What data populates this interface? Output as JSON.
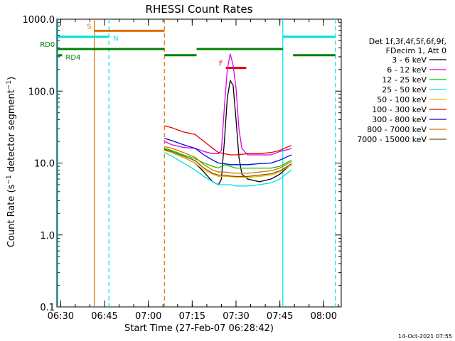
{
  "chart_data": {
    "type": "line",
    "title": "RHESSI Count Rates",
    "xlabel": "Start Time (27-Feb-07 06:28:42)",
    "ylabel_main": "Count Rate (s",
    "ylabel_sup1": "−1",
    "ylabel_mid": " detector segment",
    "ylabel_sup2": "−1",
    "ylabel_end": ")",
    "y_scale": "log",
    "ylim": [
      0.1,
      1000
    ],
    "xlim": [
      "06:28:42",
      "08:06:00"
    ],
    "x_ticks": [
      {
        "t": "06:30",
        "label": "06:30"
      },
      {
        "t": "06:45",
        "label": "06:45"
      },
      {
        "t": "07:00",
        "label": "07:00"
      },
      {
        "t": "07:15",
        "label": "07:15"
      },
      {
        "t": "07:30",
        "label": "07:30"
      },
      {
        "t": "07:45",
        "label": "07:45"
      },
      {
        "t": "08:00",
        "label": "08:00"
      }
    ],
    "y_ticks": [
      {
        "v": 0.1,
        "label": "0.1"
      },
      {
        "v": 1,
        "label": "1.0"
      },
      {
        "v": 10,
        "label": "10.0"
      },
      {
        "v": 100,
        "label": "100.0"
      },
      {
        "v": 1000,
        "label": "1000.0"
      }
    ],
    "legend_title": [
      "Det 1f,3f,4f,5f,6f,9f,",
      "FDecim 1, Att 0"
    ],
    "legend_placement": "right",
    "series": [
      {
        "name": "3 - 6 keV",
        "color": "#000000",
        "points": [
          [
            "07:05:30",
            15.5
          ],
          [
            "07:08",
            14
          ],
          [
            "07:12",
            12
          ],
          [
            "07:16",
            10
          ],
          [
            "07:19",
            7.5
          ],
          [
            "07:22",
            5.5
          ],
          [
            "07:24",
            5
          ],
          [
            "07:25",
            6
          ],
          [
            "07:26",
            20
          ],
          [
            "07:27",
            80
          ],
          [
            "07:28",
            140
          ],
          [
            "07:29",
            120
          ],
          [
            "07:30",
            40
          ],
          [
            "07:31",
            12
          ],
          [
            "07:32",
            7
          ],
          [
            "07:34",
            6
          ],
          [
            "07:38",
            5.5
          ],
          [
            "07:42",
            6
          ],
          [
            "07:45",
            7
          ],
          [
            "07:48",
            9
          ],
          [
            "07:49",
            9.5
          ]
        ]
      },
      {
        "name": "6 - 12 keV",
        "color": "#e000e0",
        "points": [
          [
            "07:05:30",
            20
          ],
          [
            "07:08",
            18
          ],
          [
            "07:12",
            16.5
          ],
          [
            "07:16",
            16
          ],
          [
            "07:19",
            14.5
          ],
          [
            "07:22",
            13.5
          ],
          [
            "07:24",
            13.5
          ],
          [
            "07:25",
            15
          ],
          [
            "07:26",
            60
          ],
          [
            "07:27",
            200
          ],
          [
            "07:28",
            330
          ],
          [
            "07:29",
            230
          ],
          [
            "07:30",
            110
          ],
          [
            "07:31",
            30
          ],
          [
            "07:32",
            16
          ],
          [
            "07:34",
            13
          ],
          [
            "07:38",
            13
          ],
          [
            "07:42",
            13
          ],
          [
            "07:45",
            14.5
          ],
          [
            "07:48",
            15.5
          ],
          [
            "07:49",
            16
          ]
        ]
      },
      {
        "name": "12 - 25 keV",
        "color": "#00cc00",
        "points": [
          [
            "07:05:30",
            16
          ],
          [
            "07:08",
            15
          ],
          [
            "07:12",
            13
          ],
          [
            "07:16",
            11.5
          ],
          [
            "07:19",
            10
          ],
          [
            "07:22",
            9
          ],
          [
            "07:24",
            8.5
          ],
          [
            "07:26",
            9.5
          ],
          [
            "07:28",
            9
          ],
          [
            "07:30",
            8.5
          ],
          [
            "07:34",
            8.5
          ],
          [
            "07:38",
            8.5
          ],
          [
            "07:42",
            8.5
          ],
          [
            "07:45",
            9
          ],
          [
            "07:48",
            10.5
          ],
          [
            "07:49",
            11
          ]
        ]
      },
      {
        "name": "25 - 50 keV",
        "color": "#00e0e0",
        "points": [
          [
            "07:05:30",
            14
          ],
          [
            "07:08",
            12.5
          ],
          [
            "07:12",
            10
          ],
          [
            "07:16",
            8
          ],
          [
            "07:19",
            6.5
          ],
          [
            "07:22",
            5.5
          ],
          [
            "07:24",
            5
          ],
          [
            "07:26",
            5
          ],
          [
            "07:28",
            5
          ],
          [
            "07:30",
            4.8
          ],
          [
            "07:34",
            4.8
          ],
          [
            "07:38",
            5
          ],
          [
            "07:42",
            5.3
          ],
          [
            "07:45",
            6
          ],
          [
            "07:48",
            7.5
          ],
          [
            "07:49",
            8
          ]
        ]
      },
      {
        "name": "50 - 100 keV",
        "color": "#e0c000",
        "points": [
          [
            "07:05:30",
            15
          ],
          [
            "07:08",
            14
          ],
          [
            "07:12",
            12
          ],
          [
            "07:16",
            10
          ],
          [
            "07:19",
            8
          ],
          [
            "07:22",
            7
          ],
          [
            "07:24",
            6.5
          ],
          [
            "07:26",
            6.5
          ],
          [
            "07:28",
            6.5
          ],
          [
            "07:30",
            6.3
          ],
          [
            "07:34",
            6.3
          ],
          [
            "07:38",
            6.5
          ],
          [
            "07:42",
            6.8
          ],
          [
            "07:45",
            7.5
          ],
          [
            "07:48",
            9
          ],
          [
            "07:49",
            9.5
          ]
        ]
      },
      {
        "name": "100 - 300 keV",
        "color": "#e00000",
        "points": [
          [
            "07:05:30",
            33
          ],
          [
            "07:08",
            31
          ],
          [
            "07:12",
            27
          ],
          [
            "07:16",
            25
          ],
          [
            "07:19",
            20
          ],
          [
            "07:22",
            16
          ],
          [
            "07:24",
            14
          ],
          [
            "07:26",
            13.5
          ],
          [
            "07:28",
            13
          ],
          [
            "07:30",
            13
          ],
          [
            "07:34",
            13.5
          ],
          [
            "07:38",
            13.5
          ],
          [
            "07:42",
            14
          ],
          [
            "07:45",
            15
          ],
          [
            "07:48",
            17
          ],
          [
            "07:49",
            17.5
          ]
        ]
      },
      {
        "name": "300 - 800 keV",
        "color": "#0000e0",
        "points": [
          [
            "07:05:30",
            22
          ],
          [
            "07:08",
            20.5
          ],
          [
            "07:12",
            18
          ],
          [
            "07:16",
            16
          ],
          [
            "07:19",
            13
          ],
          [
            "07:22",
            11
          ],
          [
            "07:24",
            10
          ],
          [
            "07:26",
            9.8
          ],
          [
            "07:28",
            9.5
          ],
          [
            "07:30",
            9.5
          ],
          [
            "07:34",
            9.5
          ],
          [
            "07:38",
            9.8
          ],
          [
            "07:42",
            10
          ],
          [
            "07:45",
            11
          ],
          [
            "07:48",
            12.5
          ],
          [
            "07:49",
            13
          ]
        ]
      },
      {
        "name": "800 - 7000 keV",
        "color": "#e07000",
        "points": [
          [
            "07:05:30",
            17
          ],
          [
            "07:08",
            16
          ],
          [
            "07:12",
            14
          ],
          [
            "07:16",
            12
          ],
          [
            "07:19",
            9.5
          ],
          [
            "07:22",
            8
          ],
          [
            "07:24",
            7.5
          ],
          [
            "07:26",
            7.5
          ],
          [
            "07:28",
            7.3
          ],
          [
            "07:30",
            7.2
          ],
          [
            "07:34",
            7.2
          ],
          [
            "07:38",
            7.5
          ],
          [
            "07:42",
            7.8
          ],
          [
            "07:45",
            8.5
          ],
          [
            "07:48",
            10
          ],
          [
            "07:49",
            10.5
          ]
        ]
      },
      {
        "name": "7000 - 15000 keV",
        "color": "#805000",
        "points": [
          [
            "07:05:30",
            15.5
          ],
          [
            "07:08",
            14.5
          ],
          [
            "07:12",
            12.5
          ],
          [
            "07:16",
            10.8
          ],
          [
            "07:19",
            8.5
          ],
          [
            "07:22",
            7.2
          ],
          [
            "07:24",
            6.8
          ],
          [
            "07:26",
            6.8
          ],
          [
            "07:28",
            6.6
          ],
          [
            "07:30",
            6.5
          ],
          [
            "07:34",
            6.5
          ],
          [
            "07:38",
            6.8
          ],
          [
            "07:42",
            7.1
          ],
          [
            "07:45",
            7.8
          ],
          [
            "07:48",
            9.2
          ],
          [
            "07:49",
            9.8
          ]
        ]
      }
    ],
    "vertical_lines": [
      {
        "t": "06:29:00",
        "color": "#00e0e0",
        "style": "solid"
      },
      {
        "t": "06:41:30",
        "color": "#e07000",
        "style": "solid"
      },
      {
        "t": "06:46:30",
        "color": "#00e0e0",
        "style": "dashed"
      },
      {
        "t": "07:05:30",
        "color": "#e07000",
        "style": "dashed"
      },
      {
        "t": "07:46:00",
        "color": "#00e0e0",
        "style": "solid"
      },
      {
        "t": "08:04:00",
        "color": "#00e0e0",
        "style": "dashed"
      }
    ],
    "status_bars": [
      {
        "label": "S",
        "color": "#e07000",
        "segments": [
          [
            "06:41:30",
            "07:05:30"
          ]
        ],
        "y": 690
      },
      {
        "label": "N",
        "color": "#00e0e0",
        "segments": [
          [
            "06:29:00",
            "06:46:30"
          ],
          [
            "07:46:00",
            "08:04:00"
          ]
        ],
        "y": 570
      },
      {
        "label": "F",
        "color": "#e00000",
        "segments": [
          [
            "07:26:30",
            "07:33:30"
          ]
        ],
        "y": 210
      },
      {
        "label": "RD0",
        "color": "#008000",
        "segments": [
          [
            "06:29:00",
            "07:05:30"
          ],
          [
            "07:16:30",
            "07:46:00"
          ]
        ],
        "y": 385
      },
      {
        "label": "RD4",
        "color": "#008000",
        "segments": [
          [
            "06:29:00",
            "06:30:30"
          ],
          [
            "07:05:30",
            "07:16:30"
          ],
          [
            "07:49:30",
            "08:04:00"
          ]
        ],
        "y": 315
      }
    ],
    "footer": "14-Oct-2021 07:55"
  }
}
